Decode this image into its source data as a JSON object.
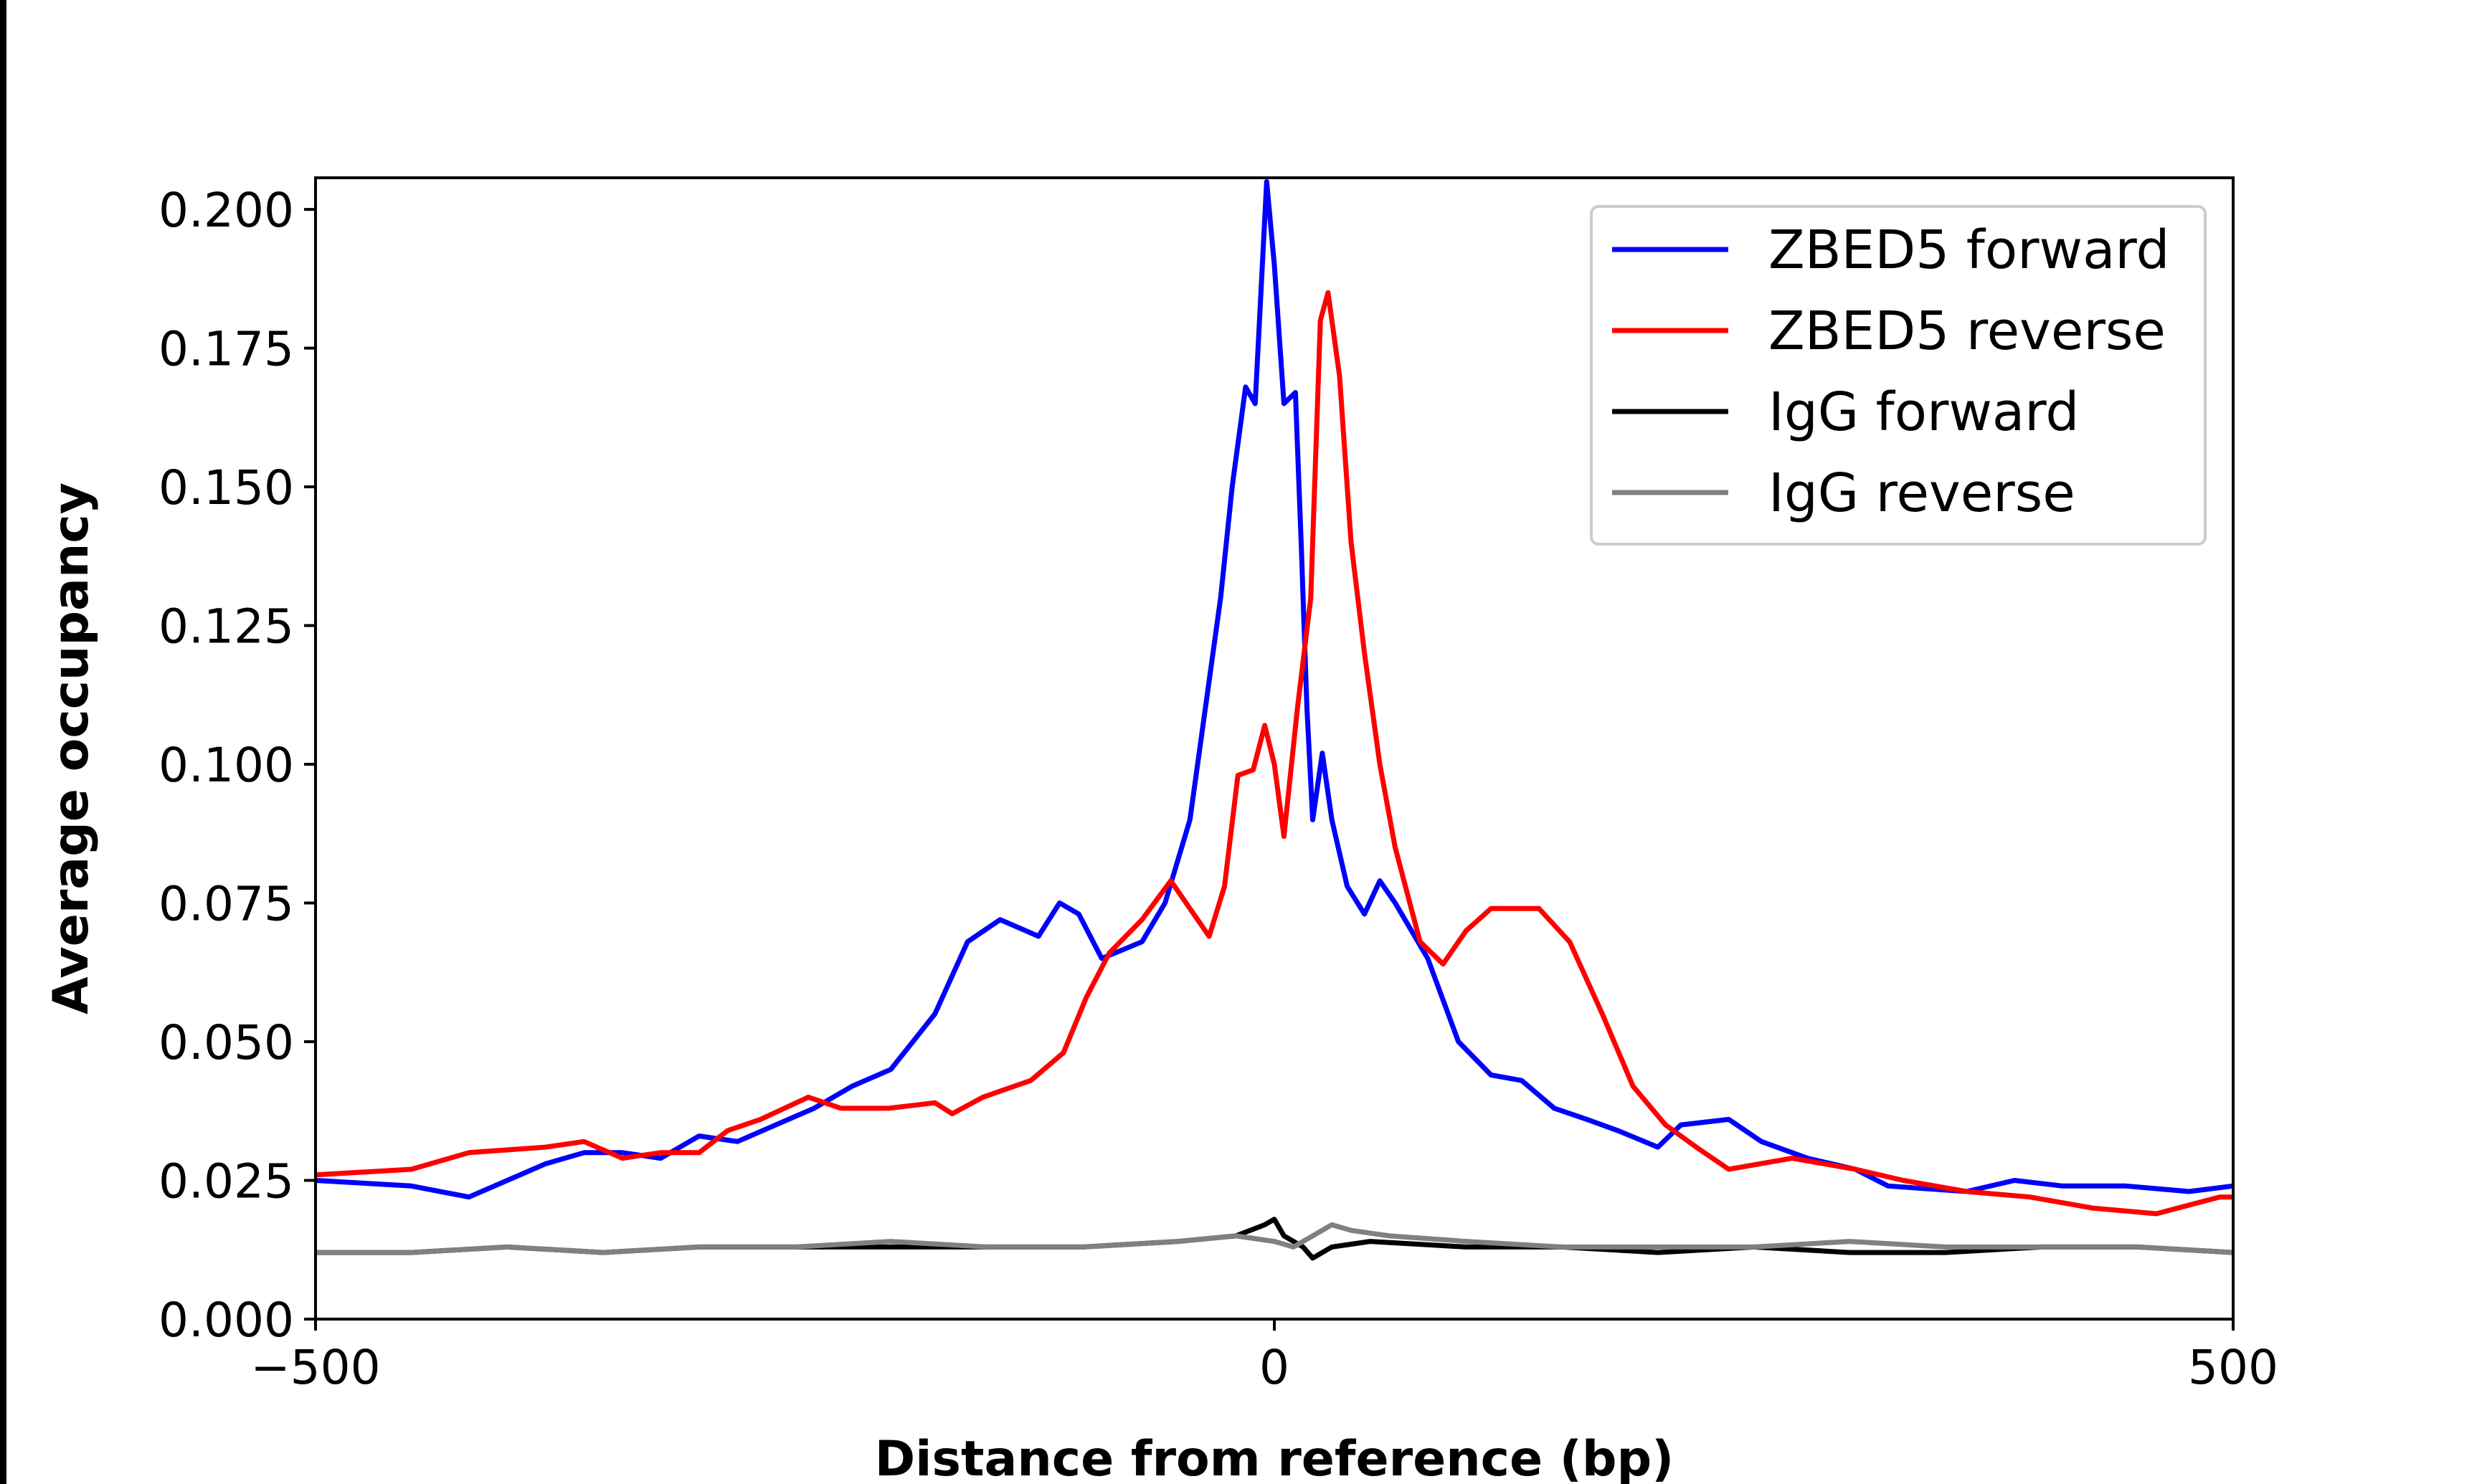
{
  "chart_data": {
    "type": "line",
    "title": "",
    "xlabel": "Distance from reference (bp)",
    "ylabel": "Average occupancy",
    "xlim": [
      -500,
      500
    ],
    "ylim": [
      0,
      0.2057
    ],
    "xticks": [
      -500,
      0,
      500
    ],
    "xtick_labels": [
      "−500",
      "0",
      "500"
    ],
    "yticks": [
      0,
      0.025,
      0.05,
      0.075,
      0.1,
      0.125,
      0.15,
      0.175,
      0.2
    ],
    "ytick_labels": [
      "0.000",
      "0.025",
      "0.050",
      "0.075",
      "0.100",
      "0.125",
      "0.150",
      "0.175",
      "0.200"
    ],
    "grid": false,
    "legend_position": "top-right",
    "series": [
      {
        "name": "ZBED5 forward",
        "color": "#0000ff",
        "x": [
          -500,
          -450,
          -420,
          -400,
          -380,
          -360,
          -340,
          -320,
          -300,
          -280,
          -260,
          -240,
          -220,
          -200,
          -177,
          -160,
          -143,
          -123,
          -112,
          -102,
          -90,
          -69,
          -57,
          -44,
          -36,
          -28,
          -22,
          -15,
          -10,
          -4,
          0,
          5,
          11,
          14,
          17,
          20,
          25,
          30,
          38,
          47,
          55,
          63,
          80,
          96,
          113,
          129,
          146,
          163,
          179,
          200,
          212,
          237,
          254,
          278,
          303,
          320,
          361,
          386,
          411,
          444,
          477,
          500
        ],
        "y": [
          0.025,
          0.024,
          0.022,
          0.025,
          0.028,
          0.03,
          0.03,
          0.029,
          0.033,
          0.032,
          0.035,
          0.038,
          0.042,
          0.045,
          0.055,
          0.068,
          0.072,
          0.069,
          0.075,
          0.073,
          0.065,
          0.068,
          0.075,
          0.09,
          0.11,
          0.13,
          0.15,
          0.168,
          0.165,
          0.205,
          0.19,
          0.165,
          0.167,
          0.14,
          0.11,
          0.09,
          0.102,
          0.09,
          0.078,
          0.073,
          0.079,
          0.075,
          0.065,
          0.05,
          0.044,
          0.043,
          0.038,
          0.036,
          0.034,
          0.031,
          0.035,
          0.036,
          0.032,
          0.029,
          0.027,
          0.024,
          0.023,
          0.025,
          0.024,
          0.024,
          0.023,
          0.024
        ]
      },
      {
        "name": "ZBED5 reverse",
        "color": "#ff0000",
        "x": [
          -500,
          -450,
          -420,
          -380,
          -360,
          -340,
          -320,
          -300,
          -285,
          -268,
          -243,
          -226,
          -201,
          -177,
          -168,
          -152,
          -127,
          -110,
          -98,
          -86,
          -69,
          -54,
          -44,
          -34,
          -26,
          -19,
          -11,
          -5,
          0,
          5,
          12,
          19,
          24,
          28,
          34,
          40,
          47,
          55,
          63,
          76,
          88,
          100,
          113,
          138,
          154,
          171,
          187,
          204,
          220,
          237,
          270,
          303,
          328,
          361,
          394,
          427,
          460,
          493,
          500
        ],
        "y": [
          0.026,
          0.027,
          0.03,
          0.031,
          0.032,
          0.029,
          0.03,
          0.03,
          0.034,
          0.036,
          0.04,
          0.038,
          0.038,
          0.039,
          0.037,
          0.04,
          0.043,
          0.048,
          0.058,
          0.066,
          0.072,
          0.079,
          0.074,
          0.069,
          0.078,
          0.098,
          0.099,
          0.107,
          0.1,
          0.087,
          0.11,
          0.13,
          0.18,
          0.185,
          0.17,
          0.14,
          0.12,
          0.1,
          0.085,
          0.068,
          0.064,
          0.07,
          0.074,
          0.074,
          0.068,
          0.055,
          0.042,
          0.035,
          0.031,
          0.027,
          0.029,
          0.027,
          0.025,
          0.023,
          0.022,
          0.02,
          0.019,
          0.022,
          0.022
        ]
      },
      {
        "name": "IgG forward",
        "color": "#000000",
        "x": [
          -500,
          -450,
          -400,
          -350,
          -300,
          -250,
          -200,
          -150,
          -100,
          -50,
          -20,
          -5,
          0,
          5,
          15,
          20,
          30,
          50,
          100,
          150,
          200,
          250,
          300,
          350,
          400,
          450,
          500
        ],
        "y": [
          0.012,
          0.012,
          0.013,
          0.012,
          0.013,
          0.013,
          0.013,
          0.013,
          0.013,
          0.014,
          0.015,
          0.017,
          0.018,
          0.015,
          0.013,
          0.011,
          0.013,
          0.014,
          0.013,
          0.013,
          0.012,
          0.013,
          0.012,
          0.012,
          0.013,
          0.013,
          0.012
        ]
      },
      {
        "name": "IgG reverse",
        "color": "#808080",
        "x": [
          -500,
          -450,
          -400,
          -350,
          -300,
          -250,
          -200,
          -150,
          -100,
          -50,
          -20,
          0,
          10,
          20,
          30,
          40,
          60,
          100,
          150,
          200,
          250,
          300,
          350,
          400,
          450,
          500
        ],
        "y": [
          0.012,
          0.012,
          0.013,
          0.012,
          0.013,
          0.013,
          0.014,
          0.013,
          0.013,
          0.014,
          0.015,
          0.014,
          0.013,
          0.015,
          0.017,
          0.016,
          0.015,
          0.014,
          0.013,
          0.013,
          0.013,
          0.014,
          0.013,
          0.013,
          0.013,
          0.012
        ]
      }
    ]
  }
}
